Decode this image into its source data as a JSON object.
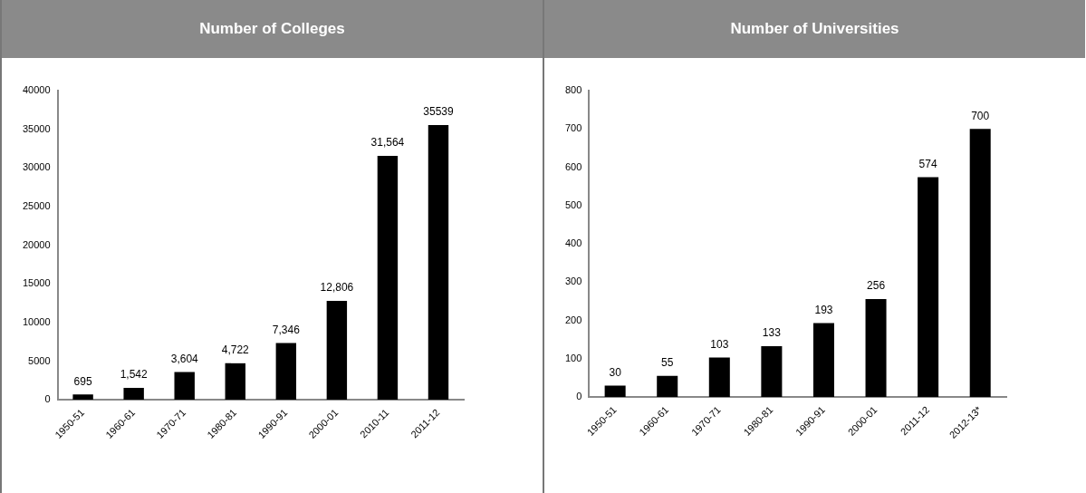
{
  "chart_data": [
    {
      "type": "bar",
      "title": "Number of Colleges",
      "categories": [
        "1950-51",
        "1960-61",
        "1970-71",
        "1980-81",
        "1990-91",
        "2000-01",
        "2010-11",
        "2011-12"
      ],
      "values": [
        695,
        1542,
        3604,
        4722,
        7346,
        12806,
        31564,
        35539
      ],
      "value_labels": [
        "695",
        "1,542",
        "3,604",
        "4,722",
        "7,346",
        "12,806",
        "31,564",
        "35539"
      ],
      "color": "#000000",
      "ylim": [
        0,
        40000
      ],
      "yticks": [
        0,
        5000,
        10000,
        15000,
        20000,
        25000,
        30000,
        35000,
        40000
      ],
      "grid": false,
      "legend": false
    },
    {
      "type": "bar",
      "title": "Number of Universities",
      "categories": [
        "1950-51",
        "1960-61",
        "1970-71",
        "1980-81",
        "1990-91",
        "2000-01",
        "2011-12",
        "2012-13*"
      ],
      "values": [
        30,
        55,
        103,
        133,
        193,
        256,
        574,
        700
      ],
      "data_labels": true,
      "color": "#000000",
      "ylim": [
        0,
        800
      ],
      "yticks": [
        0,
        100,
        200,
        300,
        400,
        500,
        600,
        700,
        800
      ],
      "grid": false,
      "legend": false
    }
  ]
}
